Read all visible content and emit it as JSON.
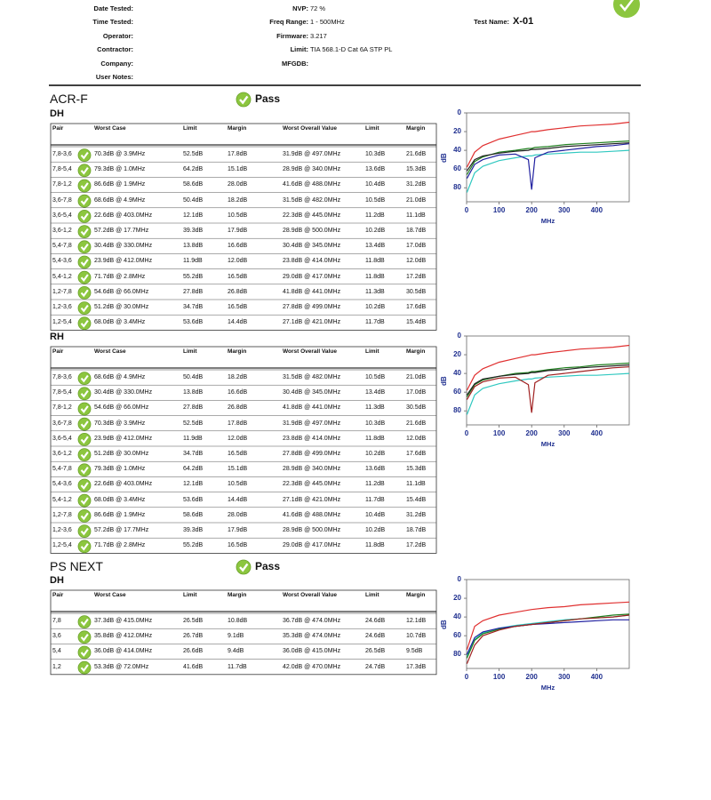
{
  "header": {
    "left": [
      {
        "label": "Date Tested:"
      },
      {
        "label": "Time Tested:"
      },
      {
        "label": "Operator:"
      },
      {
        "label": "Contractor:"
      },
      {
        "label": "Company:"
      },
      {
        "label": "User Notes:"
      }
    ],
    "middle": [
      {
        "label": "NVP:",
        "value": "72 %"
      },
      {
        "label": "Freq Range:",
        "value": "1 - 500MHz"
      },
      {
        "label": "Firmware:",
        "value": "3.217"
      },
      {
        "label": "Limit:",
        "value": "TIA 568.1-D Cat 6A STP PL"
      },
      {
        "label": "MFGDB:"
      }
    ],
    "right": [
      {
        "label": "Test Name:",
        "value": "X-01"
      }
    ]
  },
  "sections": [
    {
      "title": "ACR-F",
      "status": "Pass",
      "subsections": [
        {
          "name": "DH",
          "columns": [
            "Pair",
            "Worst Case",
            "Limit",
            "Margin",
            "Worst Overall Value",
            "Limit",
            "Margin"
          ],
          "rows": [
            [
              "7,8-3,6",
              "70.3dB @ 3.9MHz",
              "52.5dB",
              "17.8dB",
              "31.9dB @ 497.0MHz",
              "10.3dB",
              "21.6dB"
            ],
            [
              "7,8-5,4",
              "79.3dB @ 1.0MHz",
              "64.2dB",
              "15.1dB",
              "28.9dB @ 340.0MHz",
              "13.6dB",
              "15.3dB"
            ],
            [
              "7,8-1,2",
              "86.6dB @ 1.9MHz",
              "58.6dB",
              "28.0dB",
              "41.6dB @ 488.0MHz",
              "10.4dB",
              "31.2dB"
            ],
            [
              "3,6-7,8",
              "68.6dB @ 4.9MHz",
              "50.4dB",
              "18.2dB",
              "31.5dB @ 482.0MHz",
              "10.5dB",
              "21.0dB"
            ],
            [
              "3,6-5,4",
              "22.6dB @ 403.0MHz",
              "12.1dB",
              "10.5dB",
              "22.3dB @ 445.0MHz",
              "11.2dB",
              "11.1dB"
            ],
            [
              "3,6-1,2",
              "57.2dB @ 17.7MHz",
              "39.3dB",
              "17.9dB",
              "28.9dB @ 500.0MHz",
              "10.2dB",
              "18.7dB"
            ],
            [
              "5,4-7,8",
              "30.4dB @ 330.0MHz",
              "13.8dB",
              "16.6dB",
              "30.4dB @ 345.0MHz",
              "13.4dB",
              "17.0dB"
            ],
            [
              "5,4-3,6",
              "23.9dB @ 412.0MHz",
              "11.9dB",
              "12.0dB",
              "23.8dB @ 414.0MHz",
              "11.8dB",
              "12.0dB"
            ],
            [
              "5,4-1,2",
              "71.7dB @ 2.8MHz",
              "55.2dB",
              "16.5dB",
              "29.0dB @ 417.0MHz",
              "11.8dB",
              "17.2dB"
            ],
            [
              "1,2-7,8",
              "54.6dB @ 66.0MHz",
              "27.8dB",
              "26.8dB",
              "41.8dB @ 441.0MHz",
              "11.3dB",
              "30.5dB"
            ],
            [
              "1,2-3,6",
              "51.2dB @ 30.0MHz",
              "34.7dB",
              "16.5dB",
              "27.8dB @ 499.0MHz",
              "10.2dB",
              "17.6dB"
            ],
            [
              "1,2-5,4",
              "68.0dB @ 3.4MHz",
              "53.6dB",
              "14.4dB",
              "27.1dB @ 421.0MHz",
              "11.7dB",
              "15.4dB"
            ]
          ],
          "chart": {
            "type": "line",
            "x_label": "MHz",
            "y_label": "dB",
            "xlim": [
              0,
              500
            ],
            "ylim": [
              0,
              95
            ],
            "y_reversed": true,
            "xticks": [
              0,
              100,
              200,
              300,
              400
            ],
            "yticks": [
              0,
              20,
              40,
              60,
              80
            ],
            "x": [
              1,
              25,
              50,
              100,
              150,
              190,
              200,
              210,
              250,
              300,
              350,
              400,
              450,
              500
            ],
            "series": [
              {
                "color": "#e03030",
                "values": [
                  58,
                  42,
                  35,
                  28,
                  24,
                  21,
                  20,
                  20,
                  18,
                  16,
                  14,
                  13,
                  12,
                  10
                ]
              },
              {
                "color": "#30c8c0",
                "values": [
                  85,
                  64,
                  57,
                  51,
                  48,
                  46,
                  46,
                  45,
                  44,
                  43,
                  42,
                  42,
                  41,
                  40
                ]
              },
              {
                "color": "#208020",
                "values": [
                  66,
                  52,
                  47,
                  42,
                  40,
                  38,
                  38,
                  37,
                  36,
                  34,
                  33,
                  32,
                  31,
                  30
                ]
              },
              {
                "color": "#202020",
                "values": [
                  62,
                  50,
                  46,
                  43,
                  41,
                  40,
                  39,
                  39,
                  38,
                  36,
                  35,
                  34,
                  33,
                  32
                ]
              },
              {
                "color": "#2020a0",
                "values": [
                  70,
                  55,
                  50,
                  45,
                  44,
                  50,
                  82,
                  48,
                  42,
                  40,
                  38,
                  36,
                  35,
                  33
                ]
              }
            ]
          }
        },
        {
          "name": "RH",
          "columns": [
            "Pair",
            "Worst Case",
            "Limit",
            "Margin",
            "Worst Overall Value",
            "Limit",
            "Margin"
          ],
          "rows": [
            [
              "7,8-3,6",
              "68.6dB @ 4.9MHz",
              "50.4dB",
              "18.2dB",
              "31.5dB @ 482.0MHz",
              "10.5dB",
              "21.0dB"
            ],
            [
              "7,8-5,4",
              "30.4dB @ 330.0MHz",
              "13.8dB",
              "16.6dB",
              "30.4dB @ 345.0MHz",
              "13.4dB",
              "17.0dB"
            ],
            [
              "7,8-1,2",
              "54.6dB @ 66.0MHz",
              "27.8dB",
              "26.8dB",
              "41.8dB @ 441.0MHz",
              "11.3dB",
              "30.5dB"
            ],
            [
              "3,6-7,8",
              "70.3dB @ 3.9MHz",
              "52.5dB",
              "17.8dB",
              "31.9dB @ 497.0MHz",
              "10.3dB",
              "21.6dB"
            ],
            [
              "3,6-5,4",
              "23.9dB @ 412.0MHz",
              "11.9dB",
              "12.0dB",
              "23.8dB @ 414.0MHz",
              "11.8dB",
              "12.0dB"
            ],
            [
              "3,6-1,2",
              "51.2dB @ 30.0MHz",
              "34.7dB",
              "16.5dB",
              "27.8dB @ 499.0MHz",
              "10.2dB",
              "17.6dB"
            ],
            [
              "5,4-7,8",
              "79.3dB @ 1.0MHz",
              "64.2dB",
              "15.1dB",
              "28.9dB @ 340.0MHz",
              "13.6dB",
              "15.3dB"
            ],
            [
              "5,4-3,6",
              "22.6dB @ 403.0MHz",
              "12.1dB",
              "10.5dB",
              "22.3dB @ 445.0MHz",
              "11.2dB",
              "11.1dB"
            ],
            [
              "5,4-1,2",
              "68.0dB @ 3.4MHz",
              "53.6dB",
              "14.4dB",
              "27.1dB @ 421.0MHz",
              "11.7dB",
              "15.4dB"
            ],
            [
              "1,2-7,8",
              "86.6dB @ 1.9MHz",
              "58.6dB",
              "28.0dB",
              "41.6dB @ 488.0MHz",
              "10.4dB",
              "31.2dB"
            ],
            [
              "1,2-3,6",
              "57.2dB @ 17.7MHz",
              "39.3dB",
              "17.9dB",
              "28.9dB @ 500.0MHz",
              "10.2dB",
              "18.7dB"
            ],
            [
              "1,2-5,4",
              "71.7dB @ 2.8MHz",
              "55.2dB",
              "16.5dB",
              "29.0dB @ 417.0MHz",
              "11.8dB",
              "17.2dB"
            ]
          ],
          "chart": {
            "type": "line",
            "x_label": "MHz",
            "y_label": "dB",
            "xlim": [
              0,
              500
            ],
            "ylim": [
              0,
              95
            ],
            "y_reversed": true,
            "xticks": [
              0,
              100,
              200,
              300,
              400
            ],
            "yticks": [
              0,
              20,
              40,
              60,
              80
            ],
            "x": [
              1,
              25,
              50,
              100,
              150,
              190,
              200,
              210,
              250,
              300,
              350,
              400,
              450,
              500
            ],
            "series": [
              {
                "color": "#e03030",
                "values": [
                  58,
                  42,
                  35,
                  28,
                  24,
                  21,
                  20,
                  20,
                  18,
                  16,
                  14,
                  13,
                  12,
                  10
                ]
              },
              {
                "color": "#30c8c0",
                "values": [
                  84,
                  63,
                  56,
                  51,
                  48,
                  46,
                  46,
                  45,
                  44,
                  43,
                  42,
                  42,
                  41,
                  40
                ]
              },
              {
                "color": "#208020",
                "values": [
                  65,
                  52,
                  47,
                  43,
                  40,
                  39,
                  38,
                  38,
                  36,
                  34,
                  33,
                  31,
                  30,
                  29
                ]
              },
              {
                "color": "#202020",
                "values": [
                  63,
                  51,
                  46,
                  43,
                  41,
                  40,
                  39,
                  39,
                  37,
                  36,
                  34,
                  33,
                  32,
                  31
                ]
              },
              {
                "color": "#a02020",
                "values": [
                  68,
                  54,
                  49,
                  45,
                  44,
                  52,
                  82,
                  50,
                  42,
                  40,
                  38,
                  36,
                  34,
                  33
                ]
              }
            ]
          }
        }
      ]
    },
    {
      "title": "PS NEXT",
      "status": "Pass",
      "subsections": [
        {
          "name": "DH",
          "columns": [
            "Pair",
            "Worst Case",
            "Limit",
            "Margin",
            "Worst Overall Value",
            "Limit",
            "Margin"
          ],
          "rows": [
            [
              "7,8",
              "37.3dB @ 415.0MHz",
              "26.5dB",
              "10.8dB",
              "36.7dB @ 474.0MHz",
              "24.6dB",
              "12.1dB"
            ],
            [
              "3,6",
              "35.8dB @ 412.0MHz",
              "26.7dB",
              "9.1dB",
              "35.3dB @ 474.0MHz",
              "24.6dB",
              "10.7dB"
            ],
            [
              "5,4",
              "36.0dB @ 414.0MHz",
              "26.6dB",
              "9.4dB",
              "36.0dB @ 415.0MHz",
              "26.5dB",
              "9.5dB"
            ],
            [
              "1,2",
              "53.3dB @ 72.0MHz",
              "41.6dB",
              "11.7dB",
              "42.0dB @ 470.0MHz",
              "24.7dB",
              "17.3dB"
            ]
          ],
          "chart": {
            "type": "line",
            "x_label": "MHz",
            "y_label": "dB",
            "xlim": [
              0,
              500
            ],
            "ylim": [
              0,
              95
            ],
            "y_reversed": true,
            "xticks": [
              0,
              100,
              200,
              300,
              400
            ],
            "yticks": [
              0,
              20,
              40,
              60,
              80
            ],
            "x": [
              1,
              25,
              50,
              100,
              150,
              200,
              250,
              300,
              350,
              400,
              450,
              500
            ],
            "series": [
              {
                "color": "#e03030",
                "values": [
                  75,
                  50,
                  44,
                  38,
                  35,
                  32,
                  30,
                  29,
                  27,
                  26,
                  25,
                  24
                ]
              },
              {
                "color": "#30c8c0",
                "values": [
                  82,
                  64,
                  57,
                  52,
                  49,
                  47,
                  45,
                  43,
                  42,
                  41,
                  40,
                  38
                ]
              },
              {
                "color": "#208020",
                "values": [
                  84,
                  65,
                  58,
                  53,
                  50,
                  48,
                  46,
                  44,
                  42,
                  40,
                  38,
                  37
                ]
              },
              {
                "color": "#2020a0",
                "values": [
                  80,
                  62,
                  56,
                  52,
                  50,
                  48,
                  47,
                  46,
                  45,
                  44,
                  43,
                  43
                ]
              },
              {
                "color": "#a02020",
                "values": [
                  90,
                  70,
                  60,
                  54,
                  50,
                  48,
                  46,
                  44,
                  42,
                  41,
                  40,
                  38
                ]
              }
            ]
          }
        }
      ]
    }
  ]
}
